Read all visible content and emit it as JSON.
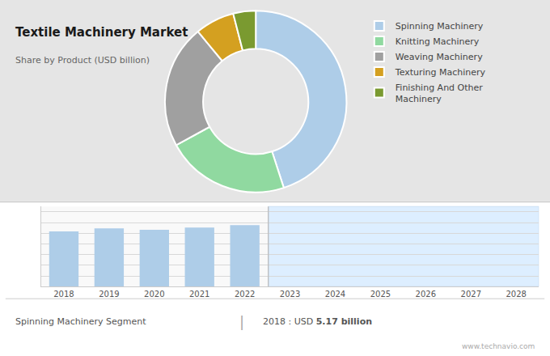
{
  "chart_data": [
    {
      "type": "pie",
      "title": "Textile Machinery Market",
      "subtitle": "Share by Product (USD billion)",
      "categories": [
        "Spinning Machinery",
        "Knitting Machinery",
        "Weaving Machinery",
        "Texturing Machinery",
        "Finishing And Other\nMachinery"
      ],
      "values": [
        45,
        22,
        22,
        7,
        4
      ],
      "colors": [
        "#aecde8",
        "#90d9a0",
        "#a0a0a0",
        "#d4a020",
        "#7a9a30"
      ],
      "legend": "right"
    },
    {
      "type": "bar",
      "categories": [
        "2018",
        "2019",
        "2020",
        "2021",
        "2022",
        "2023",
        "2024",
        "2025",
        "2026",
        "2027",
        "2028"
      ],
      "values": [
        5.17,
        5.45,
        5.32,
        5.52,
        5.75,
        null,
        null,
        null,
        null,
        null,
        null
      ],
      "color": "#aecde8",
      "ylim": [
        0,
        7.5
      ],
      "yticks": [
        0,
        1,
        2,
        3,
        4,
        5,
        6,
        7
      ],
      "grid": true,
      "tick_labels": "x",
      "annotations": [
        "Spinning Machinery Segment",
        "|",
        "2018 : USD ",
        "5.17 billion",
        "www.technavio.com"
      ]
    }
  ]
}
